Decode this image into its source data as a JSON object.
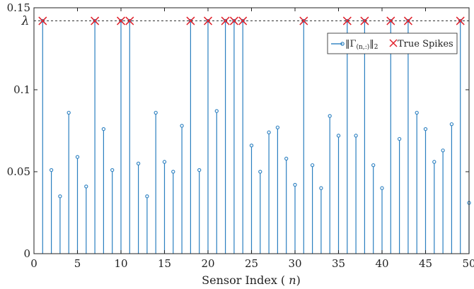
{
  "chart_data": {
    "type": "stem",
    "xlabel": "Sensor Index (n)",
    "ylabel": "",
    "xlim": [
      0,
      50
    ],
    "ylim": [
      0,
      0.15
    ],
    "xticks": [
      0,
      5,
      10,
      15,
      20,
      25,
      30,
      35,
      40,
      45,
      50
    ],
    "xtick_labels": [
      "0",
      "5",
      "10",
      "15",
      "20",
      "25",
      "30",
      "35",
      "40",
      "45",
      "50"
    ],
    "yticks": [
      0,
      0.05,
      0.1,
      0.15
    ],
    "ytick_labels": [
      "0",
      "0.05",
      "0.1",
      "0.15"
    ],
    "threshold": {
      "label": "λ",
      "value": 0.142,
      "style": "dashed"
    },
    "legend": {
      "position": "upper-right"
    },
    "series": [
      {
        "name": "‖Γ(n,:)‖₂",
        "marker": "stem-circle",
        "color": "#2a7fc0",
        "x": [
          1,
          2,
          3,
          4,
          5,
          6,
          7,
          8,
          9,
          10,
          11,
          12,
          13,
          14,
          15,
          16,
          17,
          18,
          19,
          20,
          21,
          22,
          23,
          24,
          25,
          26,
          27,
          28,
          29,
          30,
          31,
          32,
          33,
          34,
          35,
          36,
          37,
          38,
          39,
          40,
          41,
          42,
          43,
          44,
          45,
          46,
          47,
          48,
          49,
          50
        ],
        "y": [
          0.142,
          0.051,
          0.035,
          0.086,
          0.059,
          0.041,
          0.142,
          0.076,
          0.051,
          0.142,
          0.142,
          0.055,
          0.035,
          0.086,
          0.056,
          0.05,
          0.078,
          0.142,
          0.051,
          0.142,
          0.087,
          0.142,
          0.142,
          0.142,
          0.066,
          0.05,
          0.074,
          0.077,
          0.058,
          0.042,
          0.142,
          0.054,
          0.04,
          0.084,
          0.072,
          0.142,
          0.072,
          0.142,
          0.054,
          0.04,
          0.142,
          0.07,
          0.142,
          0.086,
          0.076,
          0.056,
          0.063,
          0.079,
          0.142,
          0.031
        ]
      },
      {
        "name": "True Spikes",
        "marker": "x",
        "color": "#e0202a",
        "x": [
          1,
          7,
          10,
          11,
          18,
          20,
          22,
          23,
          24,
          31,
          36,
          38,
          41,
          43,
          49
        ],
        "y": [
          0.142,
          0.142,
          0.142,
          0.142,
          0.142,
          0.142,
          0.142,
          0.142,
          0.142,
          0.142,
          0.142,
          0.142,
          0.142,
          0.142,
          0.142
        ]
      }
    ]
  },
  "legend_items": {
    "norm_label_prefix": "‖Γ",
    "norm_label_subscript": "(n,:)",
    "norm_label_suffix": "‖",
    "norm_label_sub2": "2",
    "spikes_label": "True Spikes"
  }
}
